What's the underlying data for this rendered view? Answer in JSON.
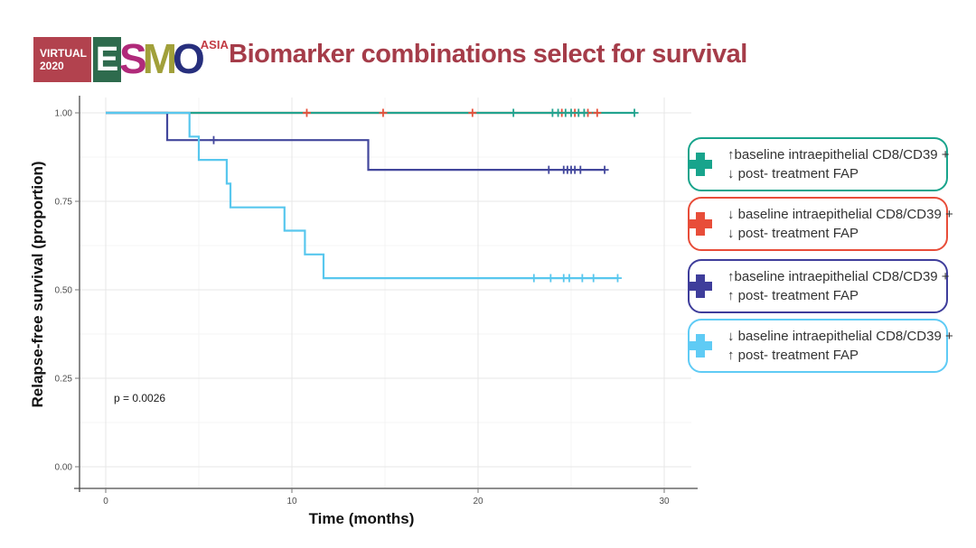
{
  "header": {
    "title": "Biomarker combinations select for survival",
    "title_color": "#a53c49",
    "logo": {
      "virtual_label": "VIRTUAL",
      "year": "2020",
      "virtual_bg": "#b2424e",
      "letters": {
        "e": "E",
        "s": "S",
        "m": "M",
        "o": "O"
      },
      "e_bg": "#2e6b4d",
      "s_color": "#b02a7a",
      "m_color": "#a1a03a",
      "o_color": "#272f7d",
      "region": "ASIA",
      "region_color": "#c23a43"
    }
  },
  "chart_data": {
    "type": "line",
    "subtype": "kaplan-meier-step",
    "xlabel": "Time (months)",
    "ylabel": "Relapse-free survival (proportion)",
    "annotation": {
      "text": "p = 0.0026"
    },
    "xlim": [
      0,
      31.5
    ],
    "ylim": [
      0,
      1.05
    ],
    "grid": {
      "major": true,
      "minor": true
    },
    "xticks": {
      "values": [
        0,
        10,
        20,
        30
      ],
      "labels": [
        "0",
        "10",
        "20",
        "30"
      ]
    },
    "xticks_minor": [
      5,
      15,
      25
    ],
    "yticks": {
      "values": [
        1.0,
        0.75,
        0.5,
        0.25,
        0.0
      ],
      "labels": [
        "1.00",
        "0.75",
        "0.50",
        "0.25",
        "0.00"
      ]
    },
    "yticks_minor": [
      0.875,
      0.625,
      0.375,
      0.125
    ],
    "series": [
      {
        "id": "low-cd8cd39-low-fap",
        "name": "low baseline intraepithelial CD8/CD39 + low post-treatment FAP",
        "color": "#e8513c",
        "points": [
          [
            0,
            1.0
          ],
          [
            26.4,
            1.0
          ]
        ],
        "censors": [
          [
            10.8,
            1.0
          ],
          [
            14.9,
            1.0
          ],
          [
            19.7,
            1.0
          ],
          [
            24.5,
            1.0
          ],
          [
            25.2,
            1.0
          ],
          [
            25.9,
            1.0
          ],
          [
            26.4,
            1.0
          ]
        ]
      },
      {
        "id": "high-cd8cd39-low-fap",
        "name": "high baseline intraepithelial CD8/CD39 + low post-treatment FAP",
        "color": "#22a38f",
        "points": [
          [
            0,
            1.0
          ],
          [
            28.4,
            1.0
          ]
        ],
        "censors": [
          [
            21.9,
            1.0
          ],
          [
            24.0,
            1.0
          ],
          [
            24.3,
            1.0
          ],
          [
            24.7,
            1.0
          ],
          [
            25.0,
            1.0
          ],
          [
            25.4,
            1.0
          ],
          [
            25.7,
            1.0
          ],
          [
            28.4,
            1.0
          ]
        ]
      },
      {
        "id": "high-cd8cd39-high-fap",
        "name": "high baseline intraepithelial CD8/CD39 + high post-treatment FAP",
        "color": "#42479c",
        "points": [
          [
            0,
            1.0
          ],
          [
            3.3,
            1.0
          ],
          [
            3.3,
            0.923
          ],
          [
            14.1,
            0.923
          ],
          [
            14.1,
            0.839
          ],
          [
            26.8,
            0.839
          ]
        ],
        "censors": [
          [
            5.8,
            0.923
          ],
          [
            23.8,
            0.839
          ],
          [
            24.6,
            0.839
          ],
          [
            24.8,
            0.839
          ],
          [
            25.0,
            0.839
          ],
          [
            25.2,
            0.839
          ],
          [
            25.5,
            0.839
          ],
          [
            26.8,
            0.839
          ]
        ]
      },
      {
        "id": "low-cd8cd39-high-fap",
        "name": "low baseline intraepithelial CD8/CD39 + high post-treatment FAP",
        "color": "#58c7ee",
        "points": [
          [
            0,
            1.0
          ],
          [
            4.5,
            1.0
          ],
          [
            4.5,
            0.933
          ],
          [
            5.0,
            0.933
          ],
          [
            5.0,
            0.867
          ],
          [
            6.5,
            0.867
          ],
          [
            6.5,
            0.8
          ],
          [
            6.7,
            0.8
          ],
          [
            6.7,
            0.733
          ],
          [
            9.6,
            0.733
          ],
          [
            9.6,
            0.667
          ],
          [
            10.7,
            0.667
          ],
          [
            10.7,
            0.6
          ],
          [
            11.7,
            0.6
          ],
          [
            11.7,
            0.533
          ],
          [
            27.5,
            0.533
          ]
        ],
        "censors": [
          [
            23.0,
            0.533
          ],
          [
            23.9,
            0.533
          ],
          [
            24.6,
            0.533
          ],
          [
            24.9,
            0.533
          ],
          [
            25.6,
            0.533
          ],
          [
            26.2,
            0.533
          ],
          [
            27.5,
            0.533
          ]
        ]
      }
    ]
  },
  "legend": {
    "items": [
      {
        "color": "#18a48c",
        "line1": "↑baseline intraepithelial CD8/CD39 +",
        "line2": "↓ post- treatment FAP"
      },
      {
        "color": "#e84d39",
        "line1": "↓ baseline intraepithelial CD8/CD39 +",
        "line2": "↓ post- treatment FAP"
      },
      {
        "color": "#3e3d9b",
        "line1": "↑baseline intraepithelial CD8/CD39 +",
        "line2": "↑ post- treatment FAP"
      },
      {
        "color": "#5fcbf5",
        "line1": "↓ baseline intraepithelial CD8/CD39 +",
        "line2": "↑ post- treatment FAP"
      }
    ]
  }
}
